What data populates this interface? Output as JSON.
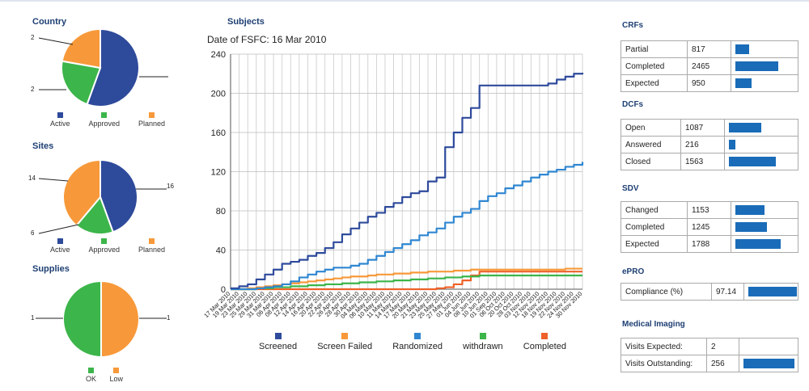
{
  "colors": {
    "active": "#2e4a9b",
    "approved": "#3cb54a",
    "planned": "#f7993a",
    "screened": "#2e4a9b",
    "screen_failed": "#f7993a",
    "randomized": "#2f86d1",
    "withdrawn": "#3cb54a",
    "completed": "#ee6128",
    "title": "#1e3f73",
    "bar": "#1a6cb8"
  },
  "left": {
    "country": {
      "title": "Country",
      "slice_labels": [
        "2",
        "2"
      ],
      "legend": [
        "Active",
        "Approved",
        "Planned"
      ]
    },
    "sites": {
      "title": "Sites",
      "slice_labels": [
        "14",
        "6",
        "16"
      ],
      "legend": [
        "Active",
        "Approved",
        "Planned"
      ]
    },
    "supplies": {
      "title": "Supplies",
      "slice_labels": [
        "1",
        "1"
      ],
      "legend": [
        "OK",
        "Low"
      ]
    }
  },
  "subjects": {
    "title": "Subjects",
    "subtitle": "Date of FSFC: 16 Mar 2010"
  },
  "chart_data": [
    {
      "type": "pie",
      "title": "Country",
      "labels": [
        "Active",
        "Approved",
        "Planned"
      ],
      "values": [
        5,
        2,
        2
      ]
    },
    {
      "type": "pie",
      "title": "Sites",
      "labels": [
        "Active",
        "Approved",
        "Planned"
      ],
      "values": [
        16,
        6,
        14
      ]
    },
    {
      "type": "pie",
      "title": "Supplies",
      "labels": [
        "OK",
        "Low"
      ],
      "values": [
        1,
        1
      ]
    },
    {
      "type": "line",
      "title": "Subjects",
      "subtitle": "Date of FSFC: 16 Mar 2010",
      "ylim": [
        0,
        240
      ],
      "yticks": [
        0,
        40,
        80,
        120,
        160,
        200,
        240
      ],
      "x": [
        "17 Mar 2010",
        "19 Mar 2010",
        "23 Mar 2010",
        "25 Mar 2010",
        "29 Mar 2010",
        "31 Mar 2010",
        "06 Apr 2010",
        "08 Apr 2010",
        "12 Apr 2010",
        "14 Apr 2010",
        "16 Apr 2010",
        "20 Apr 2010",
        "22 Apr 2010",
        "26 Apr 2010",
        "28 Apr 2010",
        "30 Apr 2010",
        "04 May 2010",
        "06 May 2010",
        "10 May 2010",
        "11 May 2010",
        "14 May 2010",
        "17 May 2010",
        "20 May 2010",
        "21 May 2010",
        "23 May 2010",
        "25 May 2010",
        "27 May 2010",
        "01 Jun 2010",
        "04 Jun 2010",
        "08 Jun 2010",
        "10 Jun 2010",
        "01 Sep 2010",
        "06 Oct 2010",
        "20 Oct 2010",
        "28 Oct 2010",
        "03 Nov 2010",
        "12 Nov 2010",
        "18 Nov 2010",
        "19 Nov 2010",
        "22 Nov 2010",
        "24 Nov 2010",
        "30 Nov 2010"
      ],
      "series": [
        {
          "name": "Screened",
          "values": [
            1,
            3,
            5,
            10,
            15,
            20,
            26,
            28,
            30,
            34,
            37,
            42,
            48,
            56,
            62,
            68,
            74,
            78,
            84,
            88,
            94,
            98,
            100,
            110,
            114,
            145,
            160,
            175,
            185,
            208,
            208,
            208,
            208,
            208,
            208,
            208,
            208,
            210,
            214,
            217,
            220,
            221
          ]
        },
        {
          "name": "Screen Failed",
          "values": [
            0,
            0,
            1,
            2,
            3,
            4,
            5,
            6,
            7,
            8,
            9,
            10,
            11,
            12,
            13,
            13,
            14,
            15,
            15,
            16,
            16,
            17,
            17,
            18,
            18,
            18,
            19,
            19,
            20,
            20,
            20,
            20,
            20,
            20,
            20,
            20,
            20,
            20,
            20,
            21,
            21,
            21
          ]
        },
        {
          "name": "Randomized",
          "values": [
            0,
            0,
            0,
            1,
            2,
            3,
            5,
            8,
            12,
            15,
            18,
            20,
            22,
            22,
            24,
            26,
            30,
            34,
            38,
            42,
            46,
            50,
            55,
            58,
            62,
            68,
            74,
            78,
            82,
            90,
            95,
            98,
            103,
            106,
            110,
            114,
            117,
            120,
            122,
            125,
            127,
            130
          ]
        },
        {
          "name": "withdrawn",
          "values": [
            0,
            0,
            0,
            1,
            1,
            2,
            2,
            3,
            3,
            4,
            4,
            5,
            5,
            6,
            6,
            7,
            7,
            8,
            8,
            9,
            9,
            10,
            10,
            11,
            11,
            12,
            12,
            13,
            13,
            14,
            14,
            14,
            14,
            14,
            14,
            14,
            14,
            14,
            14,
            14,
            14,
            14
          ]
        },
        {
          "name": "Completed",
          "values": [
            0,
            0,
            0,
            0,
            0,
            0,
            0,
            0,
            0,
            0,
            0,
            0,
            0,
            0,
            0,
            0,
            0,
            0,
            0,
            0,
            0,
            0,
            0,
            0,
            1,
            2,
            5,
            9,
            14,
            18,
            18,
            18,
            18,
            18,
            18,
            18,
            18,
            18,
            18,
            18,
            18,
            18
          ]
        }
      ]
    }
  ],
  "right": {
    "crfs": {
      "title": "CRFs",
      "rows": [
        {
          "label": "Partial",
          "value": "817",
          "fraction": 0.28
        },
        {
          "label": "Completed",
          "value": "2465",
          "fraction": 0.85
        },
        {
          "label": "Expected",
          "value": "950",
          "fraction": 0.33
        }
      ]
    },
    "dcfs": {
      "title": "DCFs",
      "rows": [
        {
          "label": "Open",
          "value": "1087",
          "fraction": 0.65
        },
        {
          "label": "Answered",
          "value": "216",
          "fraction": 0.13
        },
        {
          "label": "Closed",
          "value": "1563",
          "fraction": 0.93
        }
      ]
    },
    "sdv": {
      "title": "SDV",
      "rows": [
        {
          "label": "Changed",
          "value": "1153",
          "fraction": 0.58
        },
        {
          "label": "Completed",
          "value": "1245",
          "fraction": 0.63
        },
        {
          "label": "Expected",
          "value": "1788",
          "fraction": 0.9
        }
      ]
    },
    "epro": {
      "title": "ePRO",
      "rows": [
        {
          "label": "Compliance (%)",
          "value": "97.14",
          "fraction": 0.97
        }
      ]
    },
    "imaging": {
      "title": "Medical Imaging",
      "rows": [
        {
          "label": "Visits Expected:",
          "value": "2",
          "fraction": 0
        },
        {
          "label": "Visits Outstanding:",
          "value": "256",
          "fraction": 0.95
        }
      ]
    }
  }
}
